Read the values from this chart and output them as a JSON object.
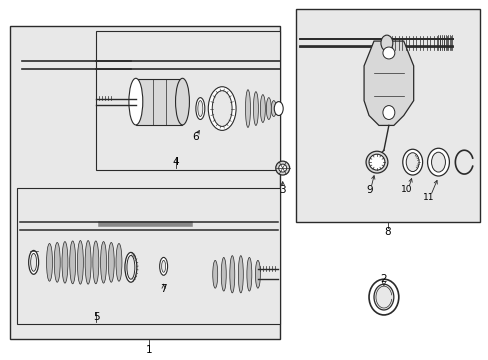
{
  "bg_color": "#e8e8e8",
  "line_color": "#2a2a2a",
  "white": "#ffffff",
  "gray_light": "#d8d8d8",
  "gray_mid": "#b0b0b0",
  "gray_dark": "#888888"
}
